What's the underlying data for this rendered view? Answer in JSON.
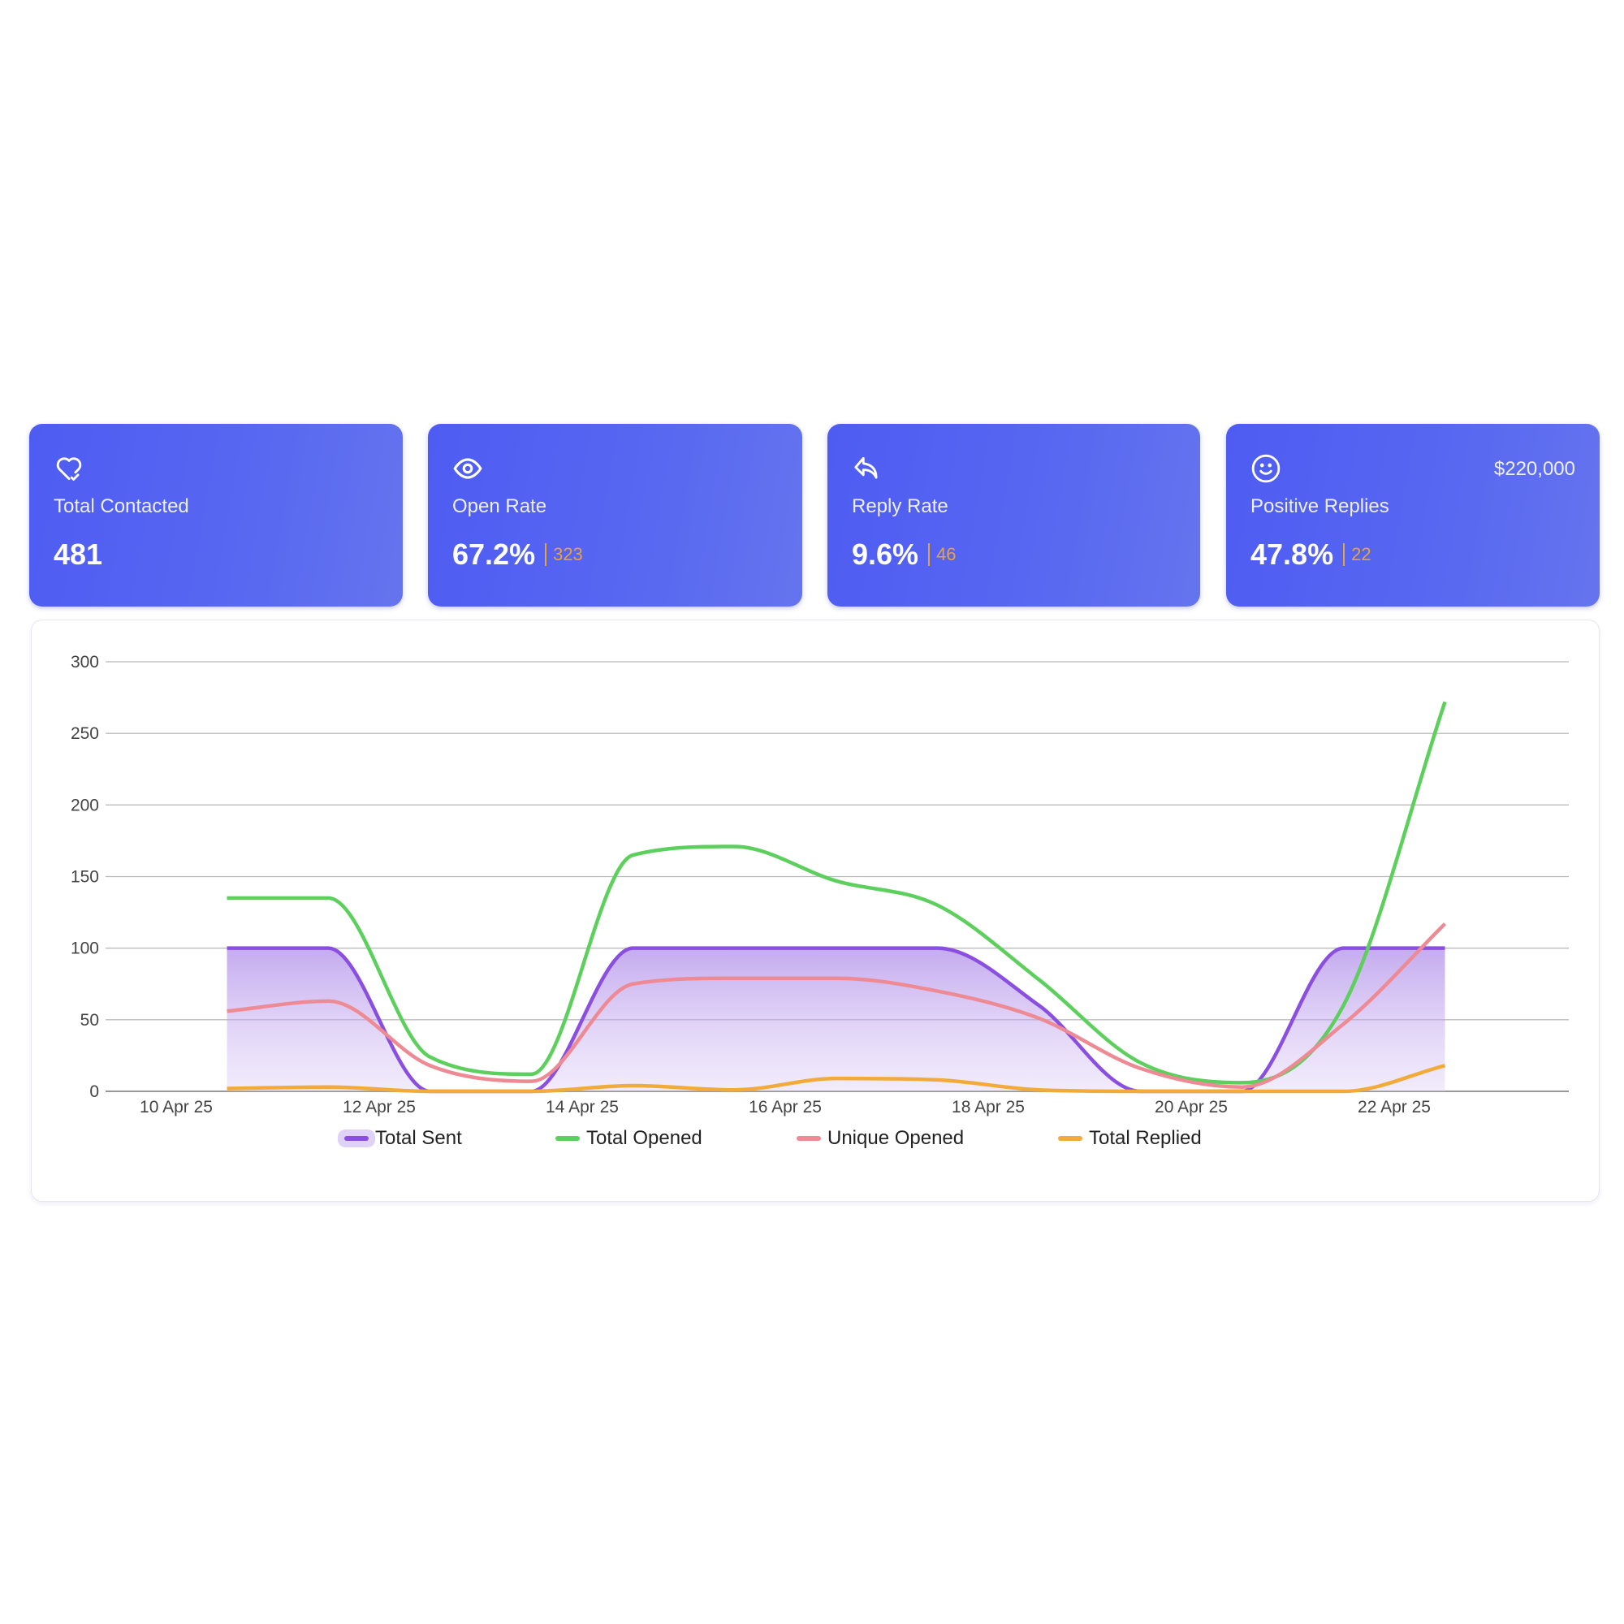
{
  "cards": [
    {
      "title": "Total Contacted",
      "value": "481",
      "icon": "heart-check-icon"
    },
    {
      "title": "Open Rate",
      "value": "67.2%",
      "sub": "323",
      "icon": "eye-icon"
    },
    {
      "title": "Reply Rate",
      "value": "9.6%",
      "sub": "46",
      "icon": "reply-icon"
    },
    {
      "title": "Positive Replies",
      "value": "47.8%",
      "sub": "22",
      "extra": "$220,000",
      "icon": "smile-icon"
    }
  ],
  "colors": {
    "card": "#5262f1",
    "accent": "#e8a23a",
    "sent": "#8a4fe0",
    "opened": "#5ccf5c",
    "unique": "#ee8a94",
    "replied": "#f2ab3a"
  },
  "chart_data": {
    "type": "line",
    "x": [
      "10 Apr 25",
      "11 Apr 25",
      "12 Apr 25",
      "13 Apr 25",
      "14 Apr 25",
      "15 Apr 25",
      "16 Apr 25",
      "17 Apr 25",
      "18 Apr 25",
      "19 Apr 25",
      "20 Apr 25",
      "21 Apr 25",
      "22 Apr 25"
    ],
    "x_tick_labels": [
      "10 Apr 25",
      "12 Apr 25",
      "14 Apr 25",
      "16 Apr 25",
      "18 Apr 25",
      "20 Apr 25",
      "22 Apr 25"
    ],
    "y_ticks": [
      "0",
      "50",
      "100",
      "150",
      "200",
      "250",
      "300"
    ],
    "ylim": [
      0,
      300
    ],
    "grid": true,
    "legend_position": "bottom",
    "series": [
      {
        "name": "Total Sent",
        "key": "sent",
        "fill": true,
        "values": [
          100,
          100,
          0,
          0,
          100,
          100,
          100,
          100,
          60,
          0,
          0,
          100,
          100
        ]
      },
      {
        "name": "Total Opened",
        "key": "opened",
        "values": [
          135,
          135,
          24,
          12,
          165,
          171,
          147,
          130,
          78,
          20,
          6,
          60,
          272
        ]
      },
      {
        "name": "Unique Opened",
        "key": "unique",
        "values": [
          56,
          63,
          18,
          7,
          75,
          79,
          79,
          70,
          51,
          16,
          3,
          47,
          117
        ]
      },
      {
        "name": "Total Replied",
        "key": "replied",
        "values": [
          2,
          3,
          0,
          0,
          4,
          1,
          9,
          8,
          1,
          0,
          0,
          0,
          18
        ]
      }
    ]
  }
}
